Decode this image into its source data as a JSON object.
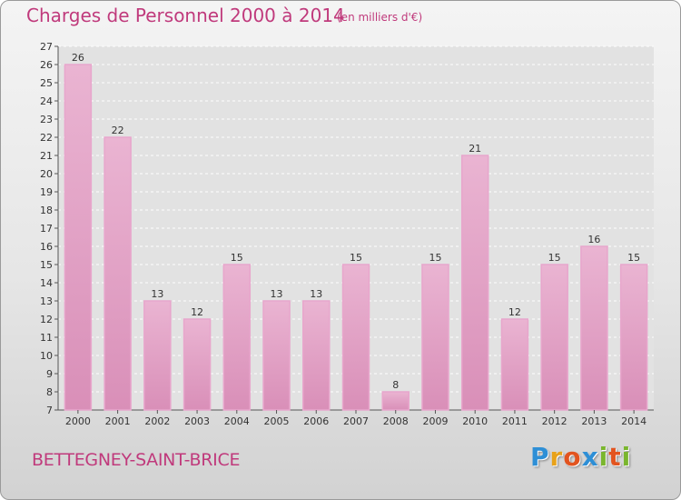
{
  "title": "Charges de Personnel 2000 à 2014",
  "unit_note": "(en milliers d'€)",
  "commune": "BETTEGNEY-SAINT-BRICE",
  "brand": {
    "letters": [
      "P",
      "r",
      "o",
      "x",
      "i",
      "t",
      "i"
    ],
    "colors": [
      "#2e8fd6",
      "#e8a21a",
      "#e2541f",
      "#2e8fd6",
      "#7ab62e",
      "#e2541f",
      "#7ab62e"
    ]
  },
  "colors": {
    "bar_fill": "#d98fb8",
    "bar_fill_light": "#eab4d2",
    "bar_stroke": "#e8a6cc",
    "text": "#c03a7c"
  },
  "chart_data": {
    "type": "bar",
    "categories": [
      "2000",
      "2001",
      "2002",
      "2003",
      "2004",
      "2005",
      "2006",
      "2007",
      "2008",
      "2009",
      "2010",
      "2011",
      "2012",
      "2013",
      "2014"
    ],
    "values": [
      26,
      22,
      13,
      12,
      15,
      13,
      13,
      15,
      8,
      15,
      21,
      12,
      15,
      16,
      15
    ],
    "title": "Charges de Personnel 2000 à 2014",
    "xlabel": "",
    "ylabel": "",
    "ylim": [
      7,
      27
    ],
    "yticks": [
      "7",
      "8",
      "9",
      "10",
      "11",
      "12",
      "13",
      "14",
      "15",
      "16",
      "17",
      "18",
      "19",
      "20",
      "21",
      "22",
      "23",
      "24",
      "25",
      "26",
      "27"
    ],
    "grid": true
  }
}
